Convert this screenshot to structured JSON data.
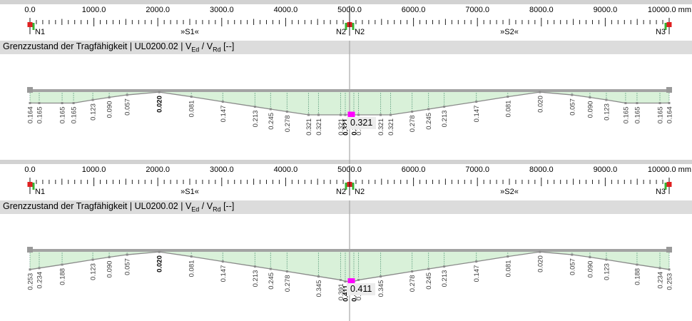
{
  "colors": {
    "panel_strip": "#d2d2d2",
    "title_bar_bg": "#dcdcdc",
    "ruler_text": "#000000",
    "tick": "#222222",
    "node_red": "#e02020",
    "node_green": "#35b535",
    "beam": "#a3a3a3",
    "beam_end": "#999999",
    "area_fill": "#d9f1d9",
    "division_dotted": "#2e7d5a",
    "curve": "#8a8a8a",
    "value_label": "#3c3c3c",
    "value_label_bold": "#000000",
    "cursor_gray": "#a6a6a6",
    "cursor_black": "#1a1a1a",
    "max_marker": "#ff00ff",
    "tooltip_bg": "#ececec",
    "tooltip_text": "#000000"
  },
  "ruler": {
    "unit": "mm",
    "major_labels": [
      "0.0",
      "1000.0",
      "2000.0",
      "3000.0",
      "4000.0",
      "5000.0",
      "6000.0",
      "7000.0",
      "8000.0",
      "9000.0",
      "10000.0"
    ],
    "major_step_mm": 1000,
    "minor_tick_step_mm": 100,
    "nodes": [
      {
        "label": "N1",
        "mm": 0,
        "label_side": "right",
        "green": [
          "right"
        ]
      },
      {
        "label": "N2",
        "mm": 5000,
        "label_side": "both",
        "green": [
          "left",
          "right"
        ]
      },
      {
        "label": "N3",
        "mm": 10000,
        "label_side": "left",
        "green": [
          "left"
        ]
      }
    ],
    "spans": [
      {
        "label": "»S1«",
        "mm": 2500
      },
      {
        "label": "»S2«",
        "mm": 7500
      }
    ]
  },
  "result_bar": {
    "p1": "Grenzzustand der Tragfähigkeit | UL0200.02 | V",
    "sub1": "Ed",
    "p2": " / V",
    "sub2": "Rd",
    "p3": " [--]"
  },
  "cursor_mm": 5000,
  "chart_data": [
    {
      "type": "area",
      "title": "Grenzzustand der Tragfähigkeit | UL0200.02 | VEd / VRd [--]",
      "x_unit": "mm",
      "x_range": [
        0,
        10000
      ],
      "min": 0.02,
      "max": 0.321,
      "tooltip_value": "0.321",
      "points": [
        {
          "mm": 0,
          "v": 0.164,
          "label": "0.164"
        },
        {
          "mm": 145,
          "v": 0.165,
          "label": "0.165"
        },
        {
          "mm": 503,
          "v": 0.165,
          "label": "0.165"
        },
        {
          "mm": 682,
          "v": 0.165,
          "label": "0.165"
        },
        {
          "mm": 983,
          "v": 0.123,
          "label": "0.123"
        },
        {
          "mm": 1240,
          "v": 0.09,
          "label": "0.090"
        },
        {
          "mm": 1520,
          "v": 0.057,
          "label": "0.057"
        },
        {
          "mm": 2022,
          "v": 0.02,
          "label": "0.020",
          "bold": true
        },
        {
          "mm": 2525,
          "v": 0.081,
          "label": "0.081"
        },
        {
          "mm": 3017,
          "v": 0.147,
          "label": "0.147"
        },
        {
          "mm": 3520,
          "v": 0.213,
          "label": "0.213"
        },
        {
          "mm": 3765,
          "v": 0.245,
          "label": "0.245"
        },
        {
          "mm": 4022,
          "v": 0.278,
          "label": "0.278"
        },
        {
          "mm": 4358,
          "v": 0.321,
          "label": "0.321"
        },
        {
          "mm": 4514,
          "v": 0.321,
          "label": "0.321"
        },
        {
          "mm": 4860,
          "v": 0.321,
          "label": "0.321"
        },
        {
          "mm": 4933,
          "v": 0.321,
          "label": "0.321",
          "bold": true
        },
        {
          "mm": 5067,
          "v": 0.321,
          "label": "0.321",
          "bold": true
        },
        {
          "mm": 5140,
          "v": 0.321,
          "label": "0.321"
        },
        {
          "mm": 5486,
          "v": 0.321,
          "label": "0.321"
        },
        {
          "mm": 5642,
          "v": 0.321,
          "label": "0.321"
        },
        {
          "mm": 5978,
          "v": 0.278,
          "label": "0.278"
        },
        {
          "mm": 6235,
          "v": 0.245,
          "label": "0.245"
        },
        {
          "mm": 6480,
          "v": 0.213,
          "label": "0.213"
        },
        {
          "mm": 6983,
          "v": 0.147,
          "label": "0.147"
        },
        {
          "mm": 7475,
          "v": 0.081,
          "label": "0.081"
        },
        {
          "mm": 7978,
          "v": 0.02,
          "label": "0.020"
        },
        {
          "mm": 8480,
          "v": 0.057,
          "label": "0.057"
        },
        {
          "mm": 8760,
          "v": 0.09,
          "label": "0.090"
        },
        {
          "mm": 9017,
          "v": 0.123,
          "label": "0.123"
        },
        {
          "mm": 9318,
          "v": 0.165,
          "label": "0.165"
        },
        {
          "mm": 9497,
          "v": 0.165,
          "label": "0.165"
        },
        {
          "mm": 9855,
          "v": 0.165,
          "label": "0.165"
        },
        {
          "mm": 10000,
          "v": 0.164,
          "label": "0.164"
        }
      ]
    },
    {
      "type": "area",
      "title": "Grenzzustand der Tragfähigkeit | UL0200.02 | VEd / VRd [--]",
      "x_unit": "mm",
      "x_range": [
        0,
        10000
      ],
      "min": 0.02,
      "max": 0.411,
      "tooltip_value": "0.411",
      "points": [
        {
          "mm": 0,
          "v": 0.253,
          "label": "0.253"
        },
        {
          "mm": 145,
          "v": 0.234,
          "label": "0.234"
        },
        {
          "mm": 503,
          "v": 0.188,
          "label": "0.188"
        },
        {
          "mm": 983,
          "v": 0.123,
          "label": "0.123"
        },
        {
          "mm": 1240,
          "v": 0.09,
          "label": "0.090"
        },
        {
          "mm": 1520,
          "v": 0.057,
          "label": "0.057"
        },
        {
          "mm": 2022,
          "v": 0.02,
          "label": "0.020",
          "bold": true
        },
        {
          "mm": 2525,
          "v": 0.081,
          "label": "0.081"
        },
        {
          "mm": 3017,
          "v": 0.147,
          "label": "0.147"
        },
        {
          "mm": 3520,
          "v": 0.213,
          "label": "0.213"
        },
        {
          "mm": 3765,
          "v": 0.245,
          "label": "0.245"
        },
        {
          "mm": 4022,
          "v": 0.278,
          "label": "0.278"
        },
        {
          "mm": 4514,
          "v": 0.345,
          "label": "0.345"
        },
        {
          "mm": 4860,
          "v": 0.391,
          "label": "0.391"
        },
        {
          "mm": 4933,
          "v": 0.411,
          "label": "0.411",
          "bold": true
        },
        {
          "mm": 5067,
          "v": 0.411,
          "label": "0.411",
          "bold": true
        },
        {
          "mm": 5140,
          "v": 0.391,
          "label": "0.391"
        },
        {
          "mm": 5486,
          "v": 0.345,
          "label": "0.345"
        },
        {
          "mm": 5978,
          "v": 0.278,
          "label": "0.278"
        },
        {
          "mm": 6235,
          "v": 0.245,
          "label": "0.245"
        },
        {
          "mm": 6480,
          "v": 0.213,
          "label": "0.213"
        },
        {
          "mm": 6983,
          "v": 0.147,
          "label": "0.147"
        },
        {
          "mm": 7475,
          "v": 0.081,
          "label": "0.081"
        },
        {
          "mm": 7978,
          "v": 0.02,
          "label": "0.020"
        },
        {
          "mm": 8480,
          "v": 0.057,
          "label": "0.057"
        },
        {
          "mm": 8760,
          "v": 0.09,
          "label": "0.090"
        },
        {
          "mm": 9017,
          "v": 0.123,
          "label": "0.123"
        },
        {
          "mm": 9497,
          "v": 0.188,
          "label": "0.188"
        },
        {
          "mm": 9855,
          "v": 0.234,
          "label": "0.234"
        },
        {
          "mm": 10000,
          "v": 0.253,
          "label": "0.253"
        }
      ]
    }
  ]
}
